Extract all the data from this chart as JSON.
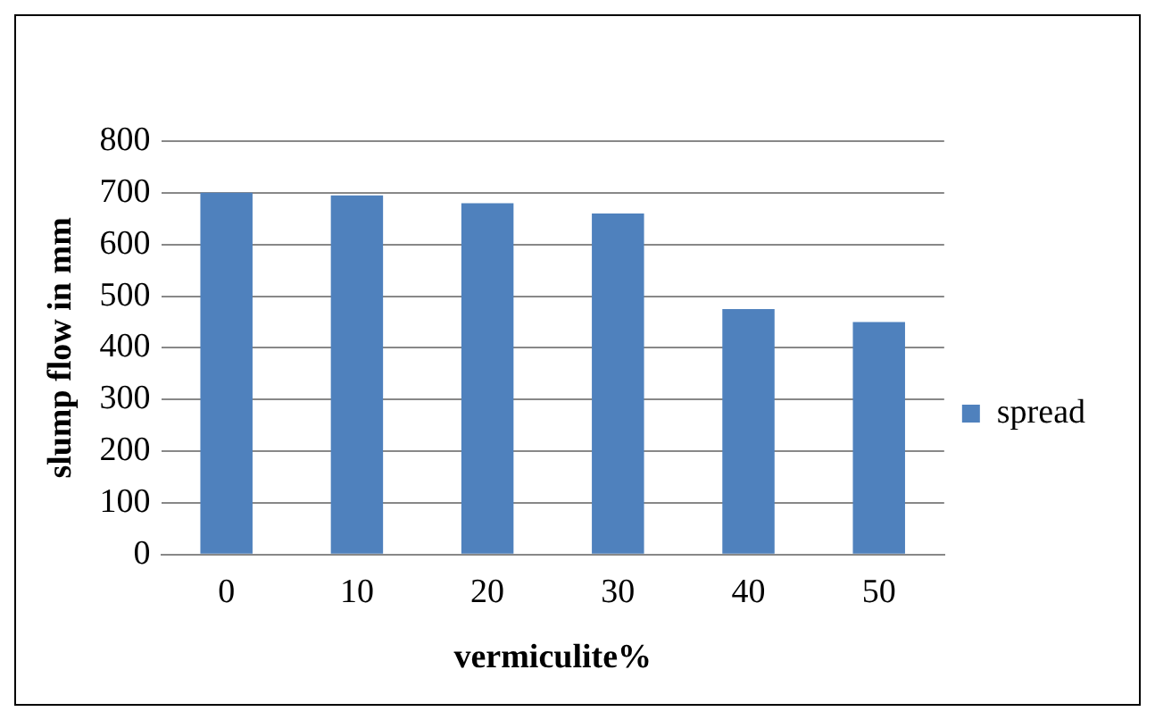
{
  "chart_data": {
    "type": "bar",
    "xlabel": "vermiculite%",
    "ylabel": "slump flow in mm",
    "categories": [
      "0",
      "10",
      "20",
      "30",
      "40",
      "50"
    ],
    "series": [
      {
        "name": "spread",
        "color": "#4f81bd",
        "values": [
          700,
          695,
          680,
          660,
          475,
          450
        ]
      }
    ],
    "ylim": [
      0,
      800
    ],
    "yticks": [
      0,
      100,
      200,
      300,
      400,
      500,
      600,
      700,
      800
    ],
    "grid": "y",
    "legend": "right"
  }
}
